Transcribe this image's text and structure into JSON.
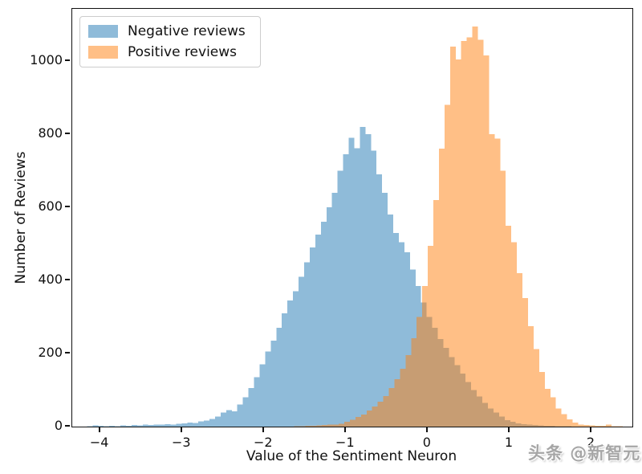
{
  "figure": {
    "background": "#ffffff",
    "watermark": "头条 @新智元"
  },
  "chart_data": {
    "type": "bar",
    "subtype": "histogram",
    "title": "",
    "xlabel": "Value of the Sentiment Neuron",
    "ylabel": "Number of Reviews",
    "xlim": [
      -4.34,
      2.5
    ],
    "ylim": [
      0,
      1143
    ],
    "grid": false,
    "x_ticks": [
      {
        "value": -4,
        "label": "−4"
      },
      {
        "value": -3,
        "label": "−3"
      },
      {
        "value": -2,
        "label": "−2"
      },
      {
        "value": -1,
        "label": "−1"
      },
      {
        "value": 0,
        "label": "0"
      },
      {
        "value": 1,
        "label": "1"
      },
      {
        "value": 2,
        "label": "2"
      }
    ],
    "y_ticks": [
      {
        "value": 0,
        "label": "0"
      },
      {
        "value": 200,
        "label": "200"
      },
      {
        "value": 400,
        "label": "400"
      },
      {
        "value": 600,
        "label": "600"
      },
      {
        "value": 800,
        "label": "800"
      },
      {
        "value": 1000,
        "label": "1000"
      }
    ],
    "legend": {
      "position": "upper left"
    },
    "series": [
      {
        "name": "Negative reviews",
        "color": "#1f77b4",
        "alpha": 0.5,
        "bin_start": -4.16,
        "bin_width": 0.068,
        "counts": [
          1,
          3,
          2,
          1,
          2,
          1,
          3,
          2,
          4,
          3,
          5,
          4,
          6,
          5,
          7,
          6,
          8,
          9,
          11,
          10,
          14,
          17,
          21,
          28,
          38,
          45,
          42,
          60,
          80,
          105,
          135,
          170,
          205,
          235,
          270,
          310,
          345,
          370,
          410,
          450,
          490,
          525,
          560,
          600,
          640,
          700,
          745,
          790,
          762,
          820,
          800,
          755,
          690,
          640,
          580,
          530,
          505,
          477,
          430,
          385,
          340,
          300,
          270,
          240,
          215,
          190,
          168,
          145,
          122,
          100,
          82,
          65,
          50,
          38,
          27,
          18,
          13,
          9,
          7,
          5,
          4,
          3,
          2,
          2,
          1,
          1,
          1,
          0
        ]
      },
      {
        "name": "Positive reviews",
        "color": "#ff7f0e",
        "alpha": 0.5,
        "bin_start": -1.63,
        "bin_width": 0.068,
        "counts": [
          1,
          1,
          2,
          2,
          3,
          4,
          5,
          6,
          8,
          13,
          19,
          26,
          33,
          44,
          55,
          68,
          84,
          105,
          130,
          158,
          196,
          242,
          300,
          385,
          495,
          620,
          760,
          880,
          1040,
          1005,
          1055,
          1065,
          1095,
          1058,
          1015,
          800,
          788,
          700,
          549,
          505,
          420,
          352,
          275,
          212,
          150,
          103,
          80,
          50,
          34,
          20,
          11,
          6,
          4,
          3,
          2,
          2,
          5,
          1,
          1
        ]
      }
    ]
  }
}
